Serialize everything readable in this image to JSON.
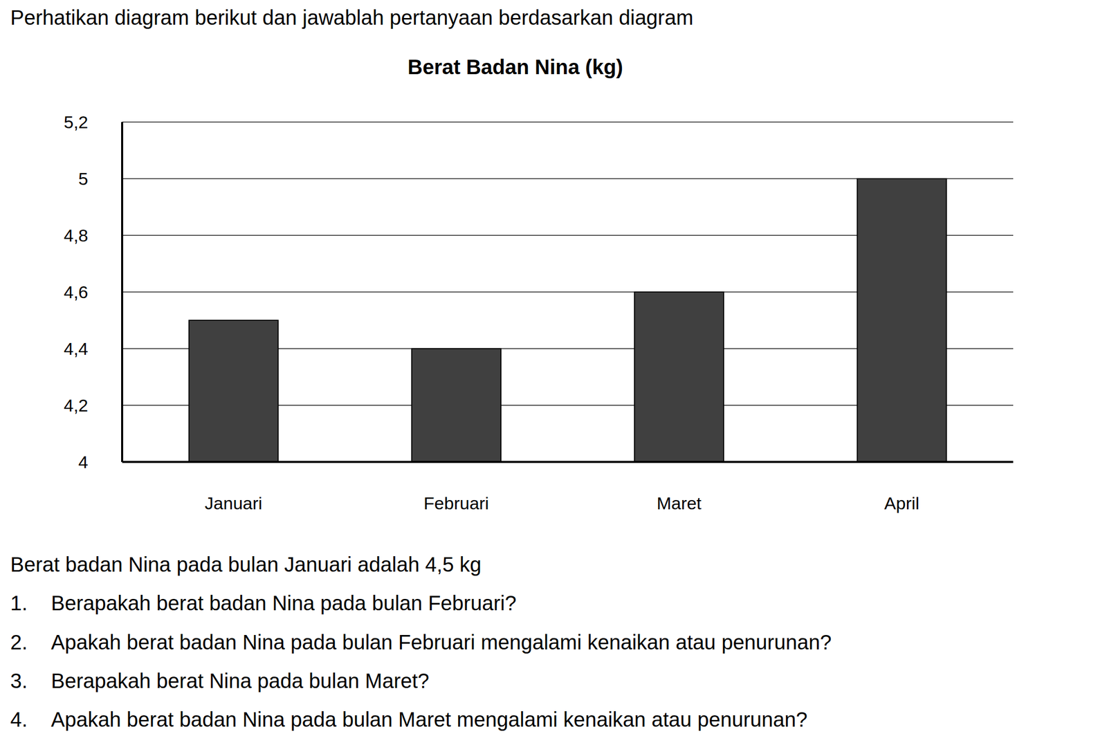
{
  "instruction": "Perhatikan diagram berikut dan jawablah pertanyaan berdasarkan diagram",
  "chart_data": {
    "type": "bar",
    "title": "Berat Badan Nina (kg)",
    "categories": [
      "Januari",
      "Februari",
      "Maret",
      "April"
    ],
    "values": [
      4.5,
      4.4,
      4.6,
      5
    ],
    "color": "#404040",
    "ylim": [
      4,
      5.2
    ],
    "yticks": [
      4,
      {
        "value": 4.2,
        "label": "4,2"
      },
      {
        "value": 4.4,
        "label": "4,4"
      },
      {
        "value": 4.6,
        "label": "4,6"
      },
      {
        "value": 4.8,
        "label": "4,8"
      },
      5,
      {
        "value": 5.2,
        "label": "5,2"
      }
    ],
    "grid": true
  },
  "statement": "Berat badan Nina pada bulan Januari adalah 4,5 kg",
  "questions": [
    {
      "number": "1.",
      "text": "Berapakah berat badan Nina pada bulan Februari?"
    },
    {
      "number": "2.",
      "text": "Apakah berat badan Nina pada bulan Februari mengalami kenaikan atau penurunan?"
    },
    {
      "number": "3.",
      "text": "Berapakah berat Nina pada bulan Maret?"
    },
    {
      "number": "4.",
      "text": "Apakah berat badan Nina pada bulan Maret mengalami kenaikan atau penurunan?"
    }
  ]
}
